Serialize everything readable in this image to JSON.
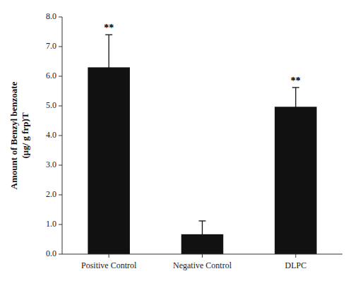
{
  "chart_data": {
    "type": "bar",
    "categories": [
      "Positive Control",
      "Negative Control",
      "DLPC"
    ],
    "values": [
      6.3,
      0.67,
      4.97
    ],
    "errors": [
      1.1,
      0.45,
      0.65
    ],
    "color": "#111111",
    "ylabel": "Amount of Benzyl benzoate\n(μg/ g frp)T",
    "ylim": [
      0,
      8.0
    ],
    "yticks": [
      {
        "value": 0.0,
        "label": "0.0"
      },
      {
        "value": 1.0,
        "label": "1.0"
      },
      {
        "value": 2.0,
        "label": "2.0"
      },
      {
        "value": 3.0,
        "label": "3.0"
      },
      {
        "value": 4.0,
        "label": "4.0"
      },
      {
        "value": 5.0,
        "label": "5.0"
      },
      {
        "value": 6.0,
        "label": "6.0"
      },
      {
        "value": 7.0,
        "label": "7.0"
      },
      {
        "value": 8.0,
        "label": "8.0"
      }
    ],
    "annotations": [
      {
        "x": "Positive Control",
        "text": "**"
      },
      {
        "x": "DLPC",
        "text": "**"
      }
    ],
    "grid": false
  }
}
